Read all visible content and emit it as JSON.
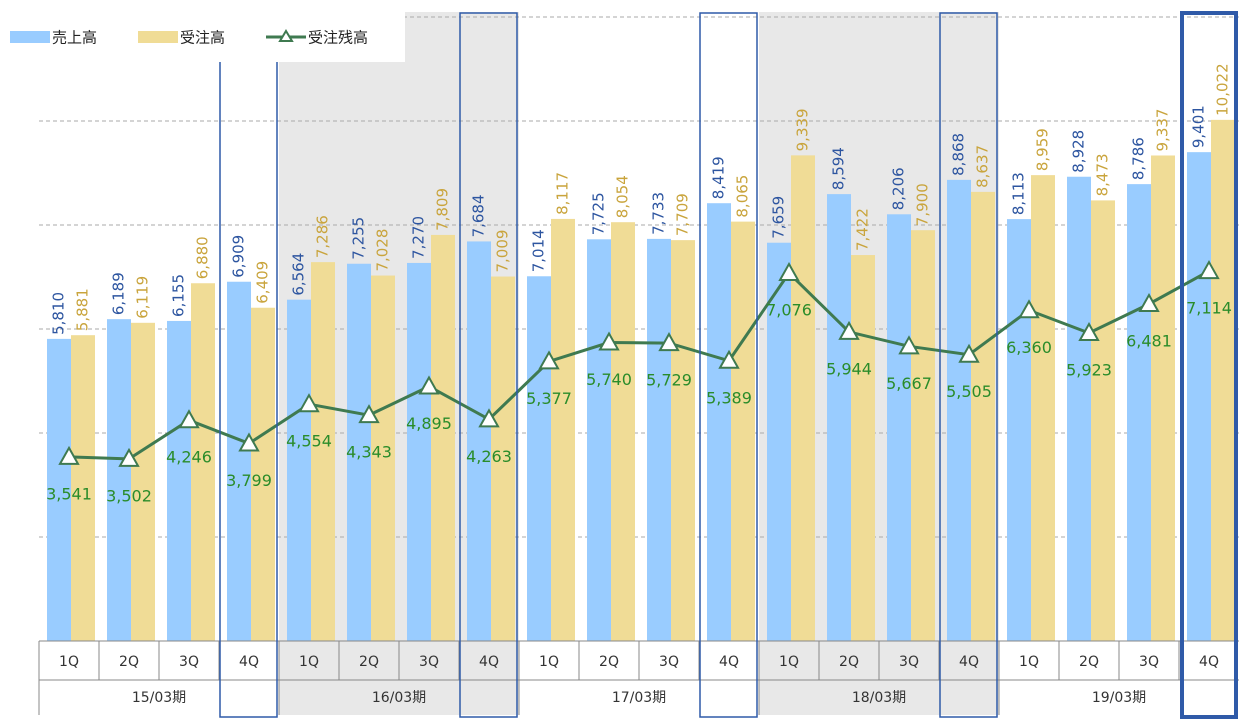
{
  "chart_data": {
    "type": "bar_line",
    "categories": [
      "1Q",
      "2Q",
      "3Q",
      "4Q",
      "1Q",
      "2Q",
      "3Q",
      "4Q",
      "1Q",
      "2Q",
      "3Q",
      "4Q",
      "1Q",
      "2Q",
      "3Q",
      "4Q",
      "1Q",
      "2Q",
      "3Q",
      "4Q"
    ],
    "groups": [
      "15/03期",
      "16/03期",
      "17/03期",
      "18/03期",
      "19/03期"
    ],
    "series": [
      {
        "name": "売上高",
        "kind": "bar",
        "color": "#99ccff",
        "label_color": "#2d55a0",
        "values": [
          5810,
          6189,
          6155,
          6909,
          6564,
          7255,
          7270,
          7684,
          7014,
          7725,
          7733,
          8419,
          7659,
          8594,
          8206,
          8868,
          8113,
          8928,
          8786,
          9401
        ],
        "value_labels": [
          "5,810",
          "6,189",
          "6,155",
          "6,909",
          "6,564",
          "7,255",
          "7,270",
          "7,684",
          "7,014",
          "7,725",
          "7,733",
          "8,419",
          "7,659",
          "8,594",
          "8,206",
          "8,868",
          "8,113",
          "8,928",
          "8,786",
          "9,401"
        ]
      },
      {
        "name": "受注高",
        "kind": "bar",
        "color": "#f0dc96",
        "label_color": "#c9a43c",
        "values": [
          5881,
          6119,
          6880,
          6409,
          7286,
          7028,
          7809,
          7009,
          8117,
          8054,
          7709,
          8065,
          9339,
          7422,
          7900,
          8637,
          8959,
          8473,
          9337,
          10022
        ],
        "value_labels": [
          "5,881",
          "6,119",
          "6,880",
          "6,409",
          "7,286",
          "7,028",
          "7,809",
          "7,009",
          "8,117",
          "8,054",
          "7,709",
          "8,065",
          "9,339",
          "7,422",
          "7,900",
          "8,637",
          "8,959",
          "8,473",
          "9,337",
          "10,022"
        ]
      },
      {
        "name": "受注残高",
        "kind": "line",
        "color": "#3f7a50",
        "label_color": "#2a8c2a",
        "values": [
          3541,
          3502,
          4246,
          3799,
          4554,
          4343,
          4895,
          4263,
          5377,
          5740,
          5729,
          5389,
          7076,
          5944,
          5667,
          5505,
          6360,
          5923,
          6481,
          7114
        ],
        "value_labels": [
          "3,541",
          "3,502",
          "4,246",
          "3,799",
          "4,554",
          "4,343",
          "4,895",
          "4,263",
          "5,377",
          "5,740",
          "5,729",
          "5,389",
          "7,076",
          "5,944",
          "5,667",
          "5,505",
          "6,360",
          "5,923",
          "6,481",
          "7,114"
        ]
      }
    ],
    "ylim": [
      0,
      12000
    ],
    "yticks": [
      0,
      2000,
      4000,
      6000,
      8000,
      10000,
      12000
    ],
    "grid": true
  }
}
